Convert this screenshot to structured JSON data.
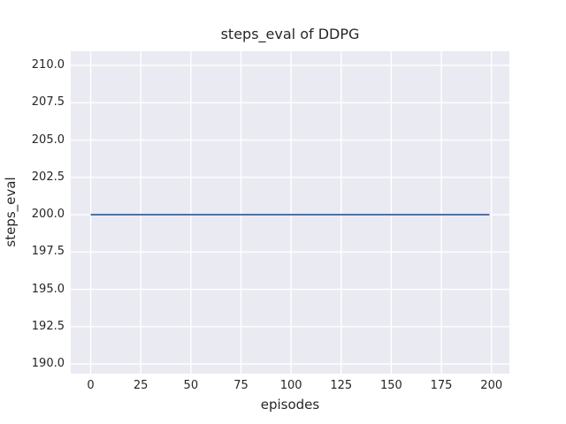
{
  "chart_data": {
    "type": "line",
    "title": "steps_eval of DDPG",
    "xlabel": "episodes",
    "ylabel": "steps_eval",
    "xlim": [
      -9.95,
      208.95
    ],
    "ylim": [
      189.35,
      210.95
    ],
    "xticks": {
      "values": [
        0,
        25,
        50,
        75,
        100,
        125,
        150,
        175,
        200
      ],
      "labels": [
        "0",
        "25",
        "50",
        "75",
        "100",
        "125",
        "150",
        "175",
        "200"
      ]
    },
    "yticks": {
      "values": [
        190.0,
        192.5,
        195.0,
        197.5,
        200.0,
        202.5,
        205.0,
        207.5,
        210.0
      ],
      "labels": [
        "190.0",
        "192.5",
        "195.0",
        "197.5",
        "200.0",
        "202.5",
        "205.0",
        "207.5",
        "210.0"
      ]
    },
    "grid": true,
    "legend": false,
    "series": [
      {
        "name": "steps_eval",
        "x": [
          0,
          199
        ],
        "y": [
          200.0,
          200.0
        ]
      }
    ],
    "style": {
      "plot_background": "#eaeaf2",
      "grid_color": "#ffffff",
      "text_color": "#262626",
      "line_color": "#4c72b0",
      "line_width": 2,
      "grid_width": 1.4
    }
  }
}
